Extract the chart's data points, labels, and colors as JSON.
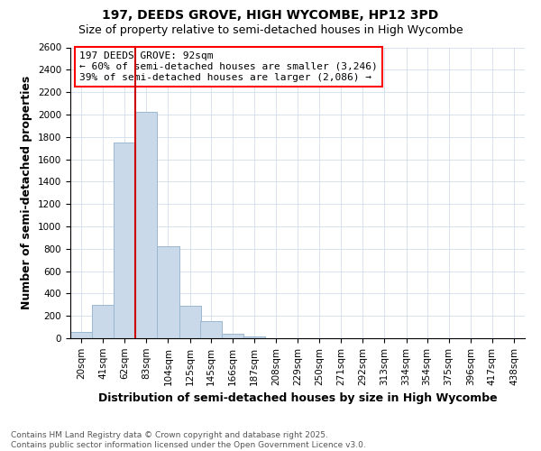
{
  "title_line1": "197, DEEDS GROVE, HIGH WYCOMBE, HP12 3PD",
  "title_line2": "Size of property relative to semi-detached houses in High Wycombe",
  "xlabel": "Distribution of semi-detached houses by size in High Wycombe",
  "ylabel": "Number of semi-detached properties",
  "annotation_line1": "197 DEEDS GROVE: 92sqm",
  "annotation_line2": "← 60% of semi-detached houses are smaller (3,246)",
  "annotation_line3": "39% of semi-detached houses are larger (2,086) →",
  "footer_line1": "Contains HM Land Registry data © Crown copyright and database right 2025.",
  "footer_line2": "Contains public sector information licensed under the Open Government Licence v3.0.",
  "bar_color": "#c9d9ea",
  "bar_edge_color": "#9ab8d0",
  "vline_color": "#cc0000",
  "vline_x": 83,
  "categories": [
    "20sqm",
    "41sqm",
    "62sqm",
    "83sqm",
    "104sqm",
    "125sqm",
    "145sqm",
    "166sqm",
    "187sqm",
    "208sqm",
    "229sqm",
    "250sqm",
    "271sqm",
    "292sqm",
    "313sqm",
    "334sqm",
    "354sqm",
    "375sqm",
    "396sqm",
    "417sqm",
    "438sqm"
  ],
  "bin_starts": [
    20,
    41,
    62,
    83,
    104,
    125,
    145,
    166,
    187,
    208,
    229,
    250,
    271,
    292,
    313,
    334,
    354,
    375,
    396,
    417,
    438
  ],
  "bin_width": 21,
  "values": [
    55,
    300,
    1750,
    2020,
    820,
    290,
    155,
    40,
    20,
    0,
    0,
    0,
    0,
    0,
    0,
    0,
    0,
    0,
    0,
    0,
    0
  ],
  "ylim": [
    0,
    2600
  ],
  "yticks": [
    0,
    200,
    400,
    600,
    800,
    1000,
    1200,
    1400,
    1600,
    1800,
    2000,
    2200,
    2400,
    2600
  ],
  "background_color": "#ffffff",
  "grid_color": "#c8d8e8",
  "title_fontsize": 10,
  "subtitle_fontsize": 9,
  "axis_label_fontsize": 9,
  "tick_fontsize": 7.5,
  "annotation_fontsize": 8,
  "footer_fontsize": 6.5
}
